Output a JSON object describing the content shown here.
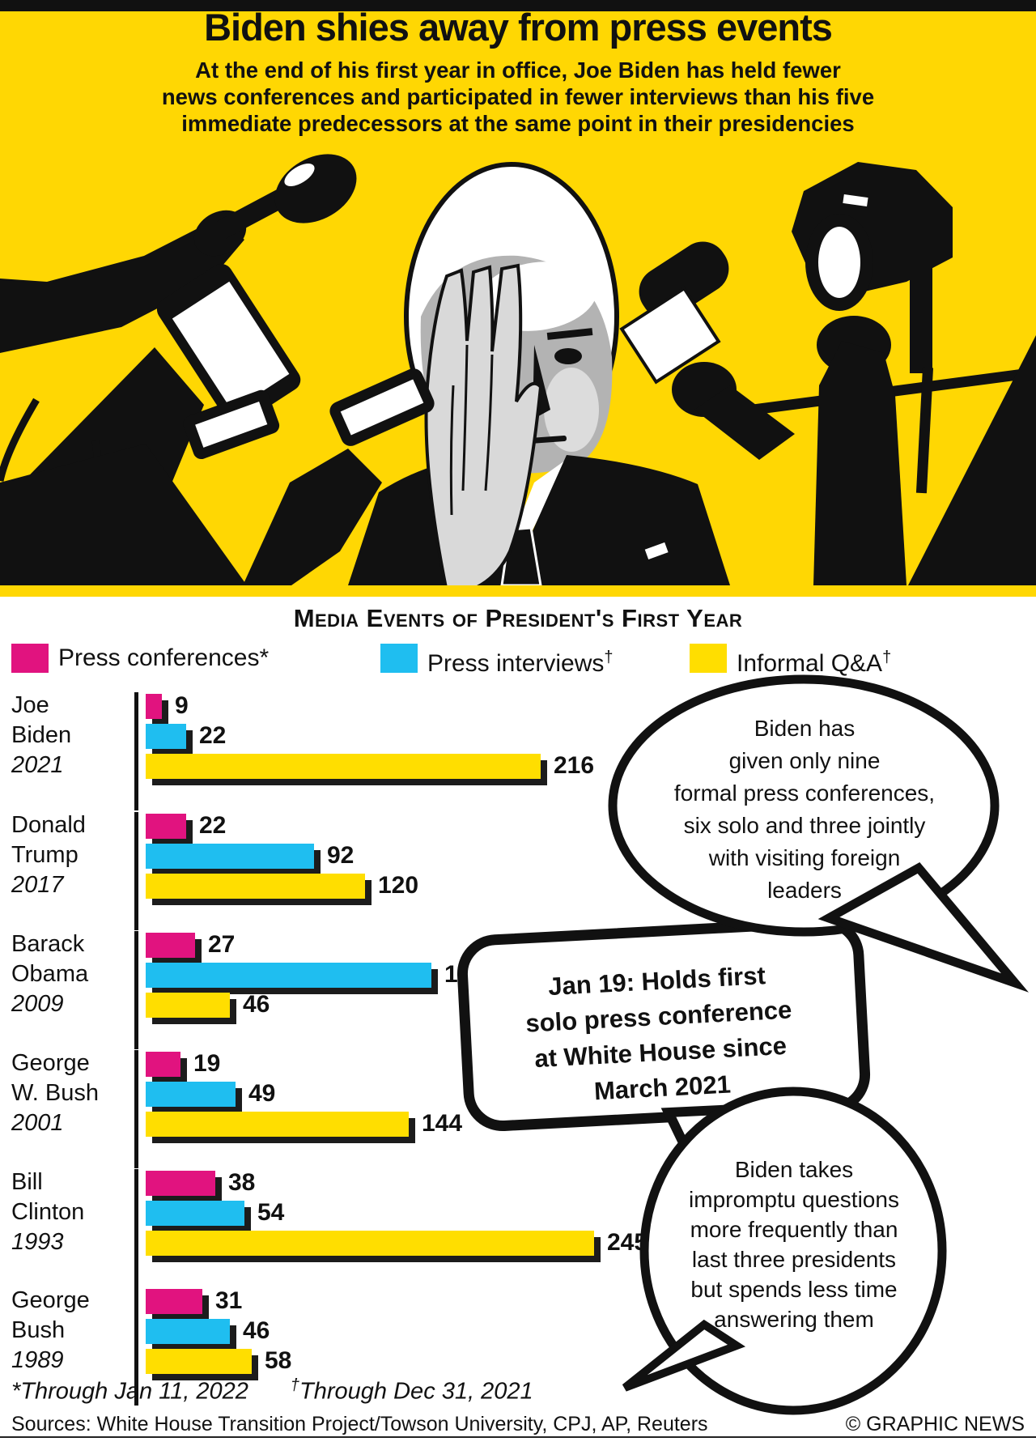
{
  "header": {
    "title": "Biden shies away from press events",
    "subtitle": "At the end of his first year in office, Joe Biden has held fewer\nnews conferences and participated in fewer interviews than his five\nimmediate predecessors at the same point in their presidencies"
  },
  "colors": {
    "background_yellow": "#FFD703",
    "press_conferences": "#E1137F",
    "press_interviews": "#1FBEF0",
    "informal_qa": "#FFDE00",
    "bar_shadow": "#1C1C1C",
    "ink": "#111111"
  },
  "chart_data": {
    "type": "bar",
    "orientation": "horizontal",
    "title": "Media Events of President's First Year",
    "categories": [
      "Joe Biden 2021",
      "Donald Trump 2017",
      "Barack Obama 2009",
      "George W. Bush 2001",
      "Bill Clinton 1993",
      "George Bush 1989"
    ],
    "series": [
      {
        "name": "Press conferences*",
        "color": "#E1137F",
        "values": [
          9,
          22,
          27,
          19,
          38,
          31
        ]
      },
      {
        "name": "Press interviews†",
        "color": "#1FBEF0",
        "values": [
          22,
          92,
          156,
          49,
          54,
          46
        ]
      },
      {
        "name": "Informal Q&A†",
        "color": "#FFDE00",
        "values": [
          216,
          120,
          46,
          144,
          245,
          58
        ]
      }
    ],
    "value_labels": true,
    "xlim": [
      0,
      260
    ],
    "grid": false,
    "legend_position": "top"
  },
  "legend": [
    {
      "label": "Press conferences",
      "mark": "*",
      "mark_sup": false,
      "color": "#E1137F"
    },
    {
      "label": "Press interviews",
      "mark": "†",
      "mark_sup": true,
      "color": "#1FBEF0"
    },
    {
      "label": "Informal Q&A",
      "mark": "†",
      "mark_sup": true,
      "color": "#FFDE00"
    }
  ],
  "presidents": [
    {
      "name_lines": "Joe\nBiden",
      "year": "2021"
    },
    {
      "name_lines": "Donald\nTrump",
      "year": "2017"
    },
    {
      "name_lines": "Barack\nObama",
      "year": "2009"
    },
    {
      "name_lines": "George\nW. Bush",
      "year": "2001"
    },
    {
      "name_lines": "Bill\nClinton",
      "year": "1993"
    },
    {
      "name_lines": "George\nBush",
      "year": "1989"
    }
  ],
  "bubbles": {
    "bubble1": "Biden has\ngiven only nine\nformal press conferences,\nsix solo and three jointly\nwith visiting foreign\nleaders",
    "bubble2": "Jan 19: Holds first\nsolo press conference\nat White House since\nMarch 2021",
    "bubble3": "Biden takes\nimpromptu questions\nmore frequently than\nlast three presidents\nbut spends less time\nanswering them"
  },
  "footnotes": {
    "f1_mark": "*",
    "f1_text": "Through Jan 11, 2022",
    "f2_mark": "†",
    "f2_text": "Through Dec 31, 2021"
  },
  "footer": {
    "sources": "Sources: White House Transition Project/Towson University, CPJ, AP, Reuters",
    "credit": "© GRAPHIC NEWS"
  }
}
